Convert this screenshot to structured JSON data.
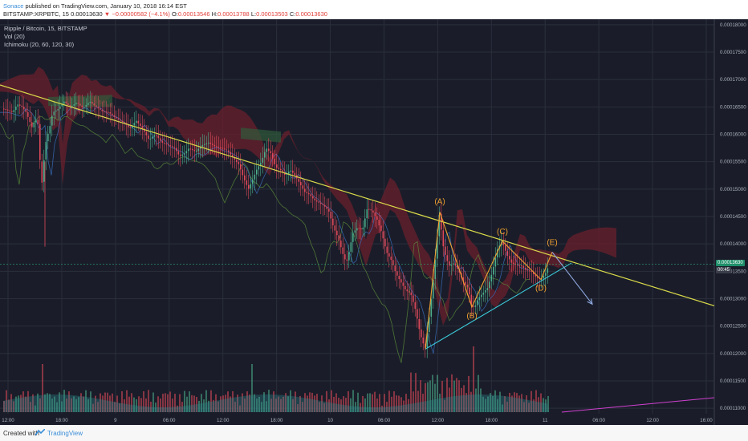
{
  "header": {
    "author": "Sonace",
    "published": "published on TradingView.com, January 10, 2018 16:14 EST",
    "symbol": "BITSTAMP:XRPBTC, 15",
    "last": "0.00013630",
    "change_arrow": "▼",
    "change": "−0.00000582 (−4.1%)",
    "o_label": "O:",
    "o_value": "0.00013546",
    "h_label": "H:",
    "h_value": "0.00013788",
    "l_label": "L:",
    "l_value": "0.00013503",
    "c_label": "C:",
    "c_value": "0.00013630"
  },
  "legend": {
    "title": "Ripple / Bitcoin, 15, BITSTAMP",
    "vol": "Vol (20)",
    "ichimoku": "Ichimoku (20, 60, 120, 30)"
  },
  "price_tags": {
    "last": "0.00013630",
    "countdown": "00:45"
  },
  "footer": {
    "created": "Created with",
    "brand": "TradingView"
  },
  "colors": {
    "background": "#1a1d29",
    "grid": "#2a2e3b",
    "up_candle": "#4cae8c",
    "down_candle": "#e0495a",
    "trendline": "#d9d94a",
    "wave": "#f0a030",
    "support_line": "#3dc8d8",
    "projection": "#8fa8e0",
    "cloud_red": "#6a1f2c",
    "cloud_green": "#2f5a3a",
    "volume_ma": "#2f8a8f",
    "magenta": "#d040d0",
    "last_price_tag": "#1f8f6a"
  },
  "chart_data": {
    "type": "candlestick",
    "symbol": "BITSTAMP:XRPBTC",
    "interval": "15",
    "y_axis": {
      "ticks": [
        "0.00018000",
        "0.00017500",
        "0.00017000",
        "0.00016500",
        "0.00016000",
        "0.00015500",
        "0.00015000",
        "0.00014500",
        "0.00014000",
        "0.00013500",
        "0.00013000",
        "0.00012500",
        "0.00012000",
        "0.00011500",
        "0.00011000"
      ],
      "ylim": [
        0.000109,
        0.000181
      ]
    },
    "x_axis": {
      "ticks": [
        "12:00",
        "18:00",
        "9",
        "06:00",
        "12:00",
        "18:00",
        "10",
        "06:00",
        "12:00",
        "18:00",
        "11",
        "06:00",
        "12:00",
        "16:00"
      ]
    },
    "price_path": [
      [
        0,
        0.0001648
      ],
      [
        8,
        0.0001645
      ],
      [
        16,
        0.000164
      ],
      [
        22,
        0.0001655
      ],
      [
        28,
        0.000165
      ],
      [
        33,
        0.000164
      ],
      [
        37,
        0.0001625
      ],
      [
        41,
        0.000161
      ],
      [
        44,
        0.000163
      ],
      [
        48,
        0.0001618
      ],
      [
        52,
        0.00015
      ],
      [
        55,
        0.000155
      ],
      [
        58,
        0.000159
      ],
      [
        62,
        0.000161
      ],
      [
        66,
        0.000164
      ],
      [
        72,
        0.0001645
      ],
      [
        80,
        0.000166
      ],
      [
        88,
        0.000165
      ],
      [
        96,
        0.0001658
      ],
      [
        104,
        0.0001648
      ],
      [
        112,
        0.000166
      ],
      [
        120,
        0.000165
      ],
      [
        128,
        0.0001642
      ],
      [
        136,
        0.000164
      ],
      [
        144,
        0.000163
      ],
      [
        150,
        0.0001625
      ],
      [
        156,
        0.000162
      ],
      [
        162,
        0.000161
      ],
      [
        170,
        0.0001625
      ],
      [
        178,
        0.000161
      ],
      [
        186,
        0.000159
      ],
      [
        194,
        0.00016
      ],
      [
        202,
        0.0001585
      ],
      [
        210,
        0.000158
      ],
      [
        218,
        0.0001575
      ],
      [
        224,
        0.000156
      ],
      [
        230,
        0.0001565
      ],
      [
        236,
        0.0001575
      ],
      [
        244,
        0.0001568
      ],
      [
        252,
        0.000158
      ],
      [
        260,
        0.0001585
      ],
      [
        268,
        0.0001578
      ],
      [
        276,
        0.0001575
      ],
      [
        284,
        0.000157
      ],
      [
        292,
        0.0001555
      ],
      [
        298,
        0.0001545
      ],
      [
        304,
        0.000152
      ],
      [
        310,
        0.00015
      ],
      [
        316,
        0.000152
      ],
      [
        320,
        0.0001535
      ],
      [
        326,
        0.000155
      ],
      [
        332,
        0.0001575
      ],
      [
        338,
        0.0001565
      ],
      [
        344,
        0.000154
      ],
      [
        350,
        0.0001535
      ],
      [
        356,
        0.0001525
      ],
      [
        362,
        0.0001535
      ],
      [
        368,
        0.0001525
      ],
      [
        374,
        0.000151
      ],
      [
        380,
        0.0001495
      ],
      [
        386,
        0.000149
      ],
      [
        392,
        0.000148
      ],
      [
        398,
        0.0001475
      ],
      [
        404,
        0.000147
      ],
      [
        410,
        0.000146
      ],
      [
        416,
        0.000143
      ],
      [
        422,
        0.000141
      ],
      [
        428,
        0.000138
      ],
      [
        432,
        0.0001365
      ],
      [
        436,
        0.000139
      ],
      [
        440,
        0.000142
      ],
      [
        446,
        0.000143
      ],
      [
        452,
        0.0001425
      ],
      [
        458,
        0.0001465
      ],
      [
        464,
        0.000146
      ],
      [
        470,
        0.0001445
      ],
      [
        476,
        0.000142
      ],
      [
        482,
        0.0001385
      ],
      [
        488,
        0.000137
      ],
      [
        494,
        0.0001345
      ],
      [
        500,
        0.000133
      ],
      [
        506,
        0.0001315
      ],
      [
        512,
        0.000131
      ],
      [
        518,
        0.000128
      ],
      [
        524,
        0.0001235
      ],
      [
        530,
        0.0001208
      ],
      [
        536,
        0.0001275
      ],
      [
        542,
        0.000136
      ],
      [
        548,
        0.0001458
      ],
      [
        552,
        0.00014
      ],
      [
        556,
        0.0001375
      ],
      [
        560,
        0.000136
      ],
      [
        566,
        0.0001365
      ],
      [
        572,
        0.000135
      ],
      [
        578,
        0.000133
      ],
      [
        584,
        0.0001318
      ],
      [
        588,
        0.0001285
      ],
      [
        592,
        0.0001285
      ],
      [
        596,
        0.00013
      ],
      [
        602,
        0.000131
      ],
      [
        608,
        0.000132
      ],
      [
        614,
        0.000135
      ],
      [
        620,
        0.000139
      ],
      [
        626,
        0.0001405
      ],
      [
        632,
        0.000138
      ],
      [
        638,
        0.0001365
      ],
      [
        644,
        0.0001362
      ],
      [
        650,
        0.000136
      ],
      [
        656,
        0.0001352
      ],
      [
        662,
        0.000135
      ],
      [
        668,
        0.000134
      ],
      [
        674,
        0.0001335
      ],
      [
        680,
        0.0001346
      ],
      [
        684,
        0.000136
      ]
    ],
    "trendline": {
      "from": [
        0,
        0.000169
      ],
      "to": [
        890,
        0.0001287
      ]
    },
    "wave_points": [
      {
        "label": "(A)",
        "x": 548,
        "price": 0.0001458
      },
      {
        "label": "(B)",
        "x": 588,
        "price": 0.0001285
      },
      {
        "label": "(C)",
        "x": 626,
        "price": 0.0001405
      },
      {
        "label": "(D)",
        "x": 674,
        "price": 0.0001335
      },
      {
        "label": "(E)",
        "x": 688,
        "price": 0.0001385
      }
    ],
    "wave_start": {
      "x": 530,
      "price": 0.0001208
    },
    "support_line": {
      "from": [
        530,
        0.0001208
      ],
      "to": [
        712,
        0.0001365
      ]
    },
    "projection": {
      "from": [
        688,
        0.0001385
      ],
      "to": [
        738,
        0.000129
      ]
    }
  }
}
